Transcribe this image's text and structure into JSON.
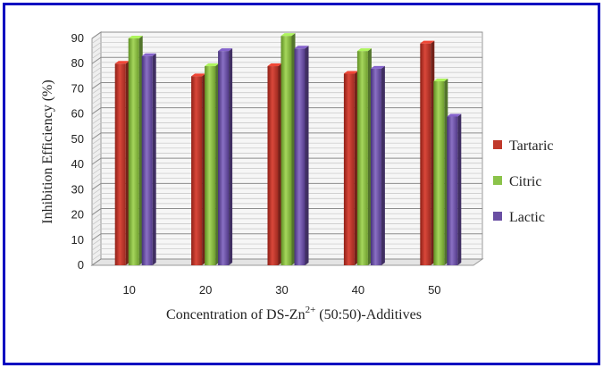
{
  "chart_data": {
    "type": "bar",
    "categories": [
      "10",
      "20",
      "30",
      "40",
      "50"
    ],
    "series": [
      {
        "name": "Tartaric",
        "values": [
          80,
          75,
          79,
          76,
          88
        ]
      },
      {
        "name": "Citric",
        "values": [
          90,
          79,
          91,
          85,
          73
        ]
      },
      {
        "name": "Lactic",
        "values": [
          83,
          85,
          86,
          78,
          59
        ]
      }
    ],
    "colors": [
      "#c0392b",
      "#8bc34a",
      "#6a4fa3"
    ],
    "title": "",
    "xlabel_prefix": "Concentration  of DS-Zn",
    "xlabel_sup": "2+",
    "xlabel_suffix": " (50:50)-Additives",
    "ylabel": "Inhibition  Efficiency  (%)",
    "ylim": [
      0,
      90
    ],
    "yticks": [
      0,
      10,
      20,
      30,
      40,
      50,
      60,
      70,
      80,
      90
    ],
    "grid": true,
    "legend_position": "right"
  }
}
